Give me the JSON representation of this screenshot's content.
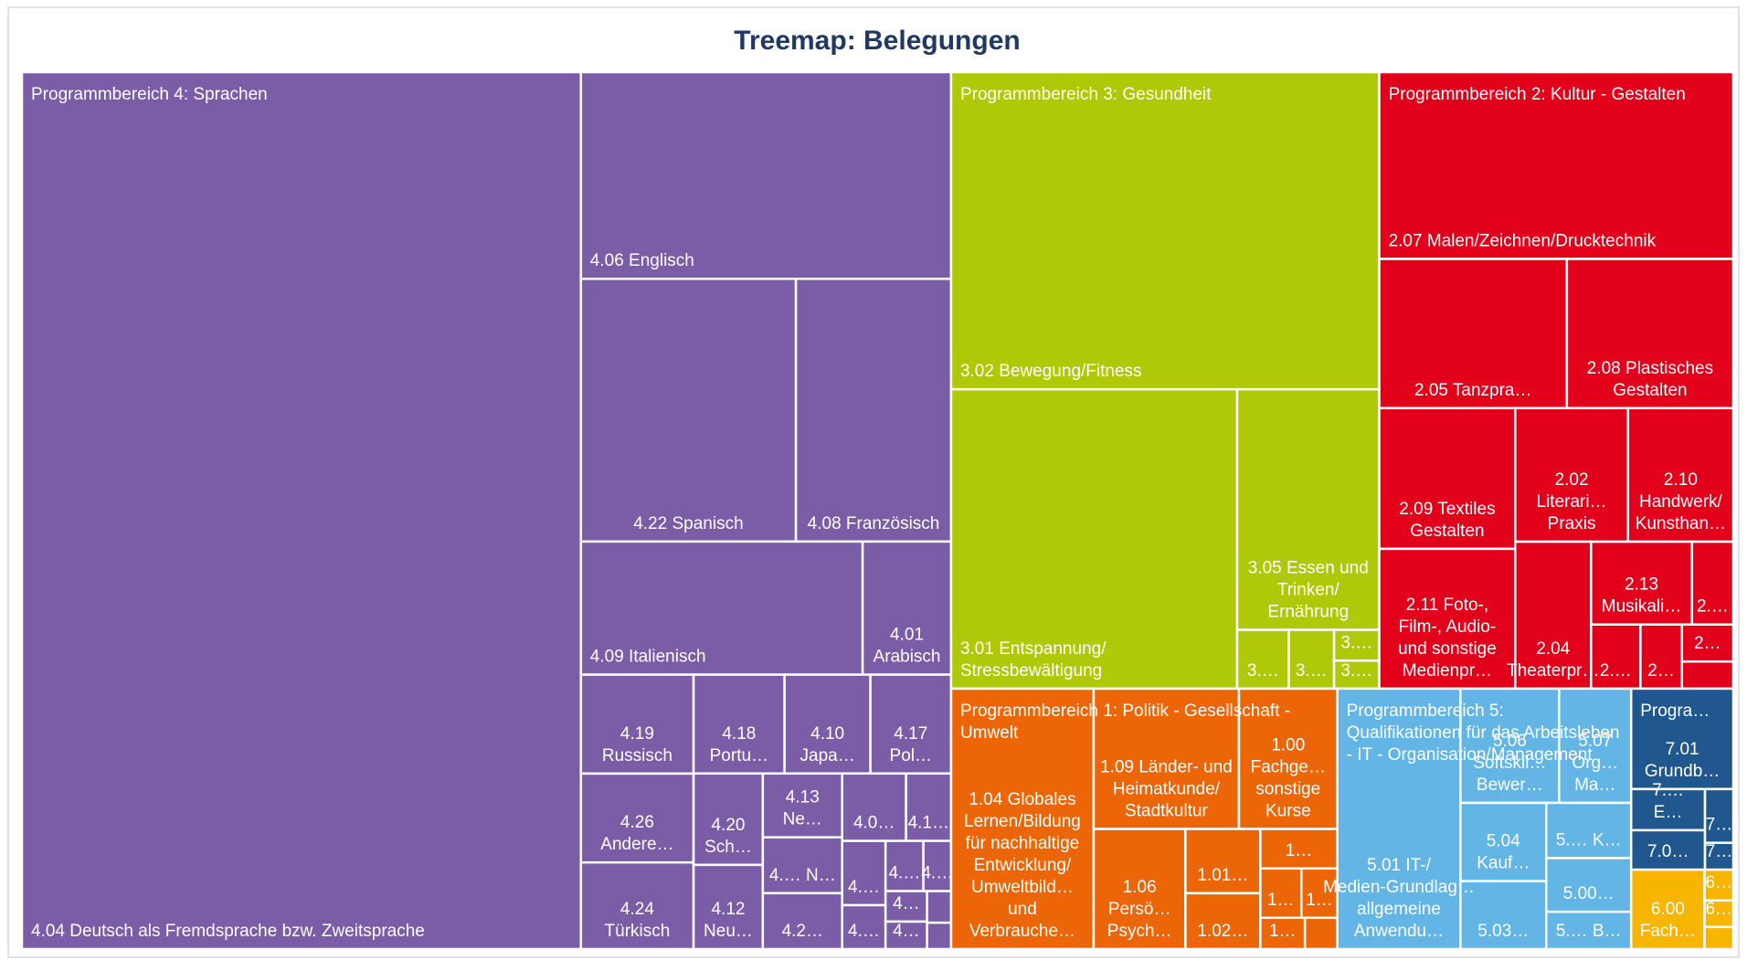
{
  "chart_data": {
    "type": "treemap",
    "title": "Treemap: Belegungen",
    "groups": [
      {
        "name": "Programmbereich 4: Sprachen",
        "color": "#7b5ca7",
        "items": [
          {
            "label": "4.04 Deutsch als Fremdsprache bzw. Zweitsprache",
            "value": 387
          },
          {
            "label": "4.06 Englisch",
            "value": 60.4
          },
          {
            "label": "4.22 Spanisch",
            "value": 44.6
          },
          {
            "label": "4.08 Französisch",
            "value": 32.2
          },
          {
            "label": "4.09 Italienisch",
            "value": 29.6
          },
          {
            "label": "4.01 Arabisch",
            "value": 9.3
          },
          {
            "label": "4.19 Russisch",
            "value": 8.8
          },
          {
            "label": "4.26 Andere…",
            "value": 7.9
          },
          {
            "label": "4.24 Türkisch",
            "value": 7.7
          },
          {
            "label": "4.18 Portu…",
            "value": 7.1
          },
          {
            "label": "4.10 Japa…",
            "value": 6.7
          },
          {
            "label": "4.17 Pol…",
            "value": 6.3
          },
          {
            "label": "4.20 Sch…",
            "value": 5.0
          },
          {
            "label": "4.12 Neu…",
            "value": 4.6
          },
          {
            "label": "4.13 Ne…",
            "value": 4.0
          },
          {
            "label": "4.… N…",
            "value": 3.5
          },
          {
            "label": "4.2…",
            "value": 3.5
          },
          {
            "label": "4.0…",
            "value": 3.4
          },
          {
            "label": "4.1…",
            "value": 2.4
          },
          {
            "label": "4.…",
            "value": 2.2
          },
          {
            "label": "4.…",
            "value": 1.5
          },
          {
            "label": "4.…",
            "value": 1.5
          },
          {
            "label": "4.…",
            "value": 1.1
          },
          {
            "label": "4…",
            "value": 1.0
          },
          {
            "label": "4…",
            "value": 0.9
          },
          {
            "label": null,
            "value": 0.6
          },
          {
            "label": null,
            "value": 0.5
          }
        ]
      },
      {
        "name": "Programmbereich 3: Gesundheit",
        "color": "#afc807",
        "items": [
          {
            "label": "3.02 Bewegung/Fitness",
            "value": 107.2
          },
          {
            "label": "3.01 Entspannung/Stressbewältigung",
            "value": 67.6
          },
          {
            "label": "3.05 Essen und Trinken/Ernährung",
            "value": 27.0
          },
          {
            "label": "3.…",
            "value": 2.4
          },
          {
            "label": "3.…",
            "value": 2.1
          },
          {
            "label": "3.…",
            "value": 1.1
          },
          {
            "label": "3.…",
            "value": 1.0
          }
        ]
      },
      {
        "name": "Programmbereich 2: Kultur - Gestalten",
        "color": "#e2001a",
        "items": [
          {
            "label": "2.07 Malen/Zeichnen/Drucktechnik",
            "value": 52.2
          },
          {
            "label": "2.05 Tanzpra…",
            "value": 22.1
          },
          {
            "label": "2.08 Plastisches Gestalten",
            "value": 19.6
          },
          {
            "label": "2.09 Textiles Gestalten",
            "value": 15.1
          },
          {
            "label": "2.11 Foto-, Film-, Audio- und sonstige Medienpr…",
            "value": 15.0
          },
          {
            "label": "2.02 Literari… Praxis",
            "value": 11.9
          },
          {
            "label": "2.10 Handwerk/Kunsthan…",
            "value": 11.1
          },
          {
            "label": "2.04 Theaterpr…",
            "value": 8.8
          },
          {
            "label": "2.13 Musikali…",
            "value": 6.6
          },
          {
            "label": "2.…",
            "value": 2.7
          },
          {
            "label": "2.…",
            "value": 2.5
          },
          {
            "label": "2…",
            "value": 2.1
          },
          {
            "label": "2…",
            "value": 1.5
          },
          {
            "label": null,
            "value": 1.1
          }
        ]
      },
      {
        "name": "Programmbereich 1: Politik - Gesellschaft - Umwelt",
        "color": "#ec6608",
        "items": [
          {
            "label": "1.04 Globales Lernen/Bildung für nachhaltige Entwicklung/Umweltbild… und Verbrauche…",
            "value": 29.3
          },
          {
            "label": "1.09 Länder- und Heimatkunde/Stadtkultur",
            "value": 16.1
          },
          {
            "label": "1.00 Fachge… sonstige Kurse",
            "value": 10.9
          },
          {
            "label": "1.06 Persö… Psych…",
            "value": 8.7
          },
          {
            "label": "1.01…",
            "value": 3.8
          },
          {
            "label": "1.02…",
            "value": 3.3
          },
          {
            "label": "1…",
            "value": 2.4
          },
          {
            "label": "1…",
            "value": 1.6
          },
          {
            "label": "1…",
            "value": 1.4
          },
          {
            "label": "1…",
            "value": 1.1
          },
          {
            "label": null,
            "value": 0.8
          }
        ]
      },
      {
        "name": "Programmbereich 5: Qualifikationen für das Arbeitsleben - IT - Organisation/Management",
        "color": "#62b5e5",
        "items": [
          {
            "label": "5.01 IT-/Medien-Grundlag… allgemeine Anwendu…",
            "value": 25.3
          },
          {
            "label": "5.06 Softskil… Bewer…",
            "value": 8.9
          },
          {
            "label": "5.07 Org… Ma…",
            "value": 6.5
          },
          {
            "label": "5.04 Kauf…",
            "value": 5.3
          },
          {
            "label": "5.03…",
            "value": 4.6
          },
          {
            "label": "5.… K…",
            "value": 3.7
          },
          {
            "label": "5.00…",
            "value": 3.6
          },
          {
            "label": "5.… B…",
            "value": 2.5
          }
        ]
      },
      {
        "name": "Progra…",
        "color": "#21578f",
        "items": [
          {
            "label": "7.01 Grundb…",
            "value": 8.1
          },
          {
            "label": "7.… E…",
            "value": 2.4
          },
          {
            "label": "7.0…",
            "value": 2.3
          },
          {
            "label": "7…",
            "value": 1.2
          },
          {
            "label": "7…",
            "value": 0.6
          }
        ]
      },
      {
        "name": null,
        "color": "#f7b500",
        "items": [
          {
            "label": "6.00 Fach…",
            "value": 4.6
          },
          {
            "label": "6…",
            "value": 0.7
          },
          {
            "label": "6…",
            "value": 0.6
          },
          {
            "label": null,
            "value": 0.5
          }
        ]
      }
    ]
  }
}
